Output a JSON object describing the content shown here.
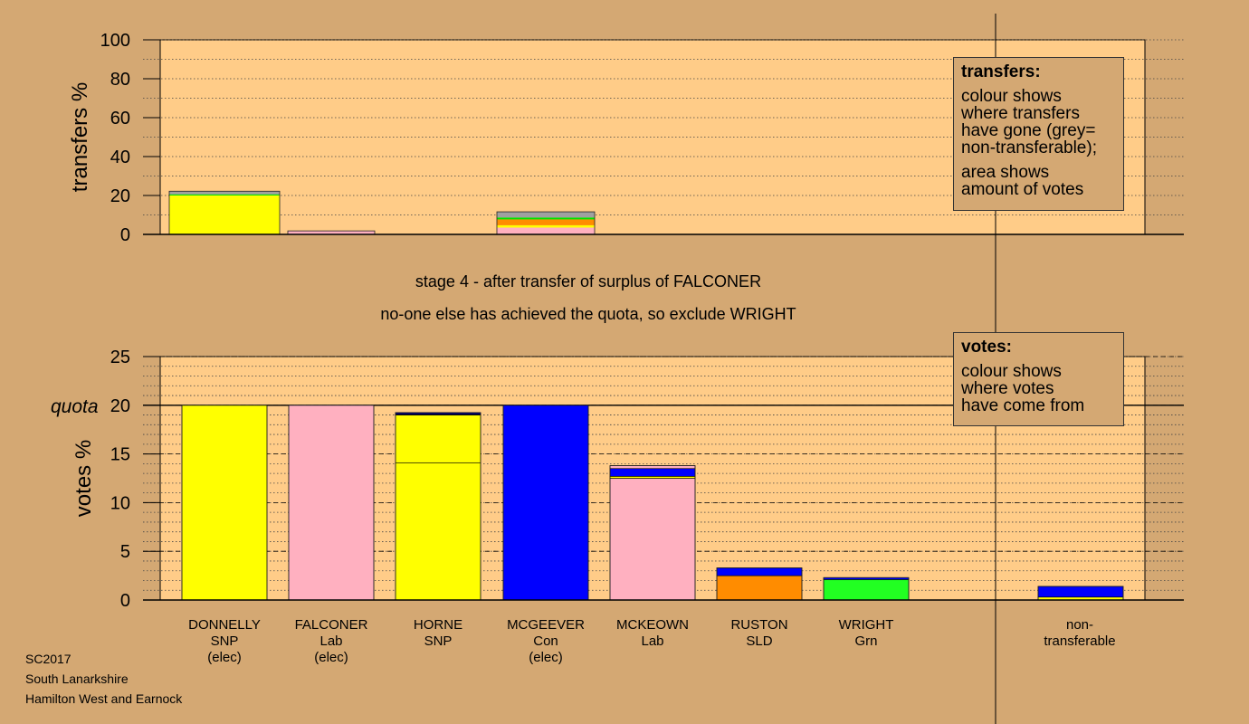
{
  "chart_data": [
    {
      "type": "bar",
      "title": "",
      "ylabel": "transfers %",
      "ylim": [
        0,
        100
      ],
      "yticks": [
        0,
        20,
        40,
        60,
        80,
        100
      ],
      "categories": [
        "DONNELLY",
        "FALCONER",
        "HORNE",
        "MCGEEVER",
        "MCKEOWN",
        "RUSTON",
        "WRIGHT"
      ],
      "stacks": [
        [
          {
            "color": "#FFFF00",
            "value": 20
          },
          {
            "color": "#00E000",
            "value": 0.6
          },
          {
            "color": "#A0A0A0",
            "value": 1.6
          }
        ],
        [
          {
            "color": "#FFB0C0",
            "value": 1.8
          }
        ],
        [],
        [
          {
            "color": "#FFB0C0",
            "value": 3.5
          },
          {
            "color": "#FFFF00",
            "value": 1.2
          },
          {
            "color": "#FF8C00",
            "value": 3
          },
          {
            "color": "#00E000",
            "value": 1
          },
          {
            "color": "#A0A0A0",
            "value": 2.9
          }
        ],
        [],
        [],
        []
      ]
    },
    {
      "type": "bar",
      "title": "",
      "ylabel": "votes %",
      "ylim": [
        0,
        25
      ],
      "yticks": [
        0,
        5,
        10,
        15,
        20,
        25
      ],
      "quota": 20,
      "quota_label": "quota",
      "categories": [
        "DONNELLY",
        "FALCONER",
        "HORNE",
        "MCGEEVER",
        "MCKEOWN",
        "RUSTON",
        "WRIGHT",
        "non-transferable"
      ],
      "stacks": [
        [
          {
            "color": "#FFFF00",
            "value": 20
          }
        ],
        [
          {
            "color": "#FFB0C0",
            "value": 20
          }
        ],
        [
          {
            "color": "#FFFF00",
            "value": 14.1
          },
          {
            "color": "#FFFF00",
            "value": 4.9
          },
          {
            "color": "#FFB0C0",
            "value": 0.05
          },
          {
            "color": "#000080",
            "value": 0.2
          }
        ],
        [
          {
            "color": "#0000FF",
            "value": 20
          }
        ],
        [
          {
            "color": "#FFB0C0",
            "value": 12.5
          },
          {
            "color": "#FFFF00",
            "value": 0.2
          },
          {
            "color": "#0000FF",
            "value": 0.8
          },
          {
            "color": "#FFB0C0",
            "value": 0.3
          }
        ],
        [
          {
            "color": "#FF8C00",
            "value": 2.5
          },
          {
            "color": "#0000FF",
            "value": 0.8
          }
        ],
        [
          {
            "color": "#22FF22",
            "value": 2.1
          },
          {
            "color": "#0000FF",
            "value": 0.2
          }
        ],
        [
          {
            "color": "#FFFF00",
            "value": 0.3
          },
          {
            "color": "#0000FF",
            "value": 1.1
          }
        ]
      ]
    }
  ],
  "candidates": [
    {
      "name": "DONNELLY",
      "party": "SNP",
      "status": "(elec)"
    },
    {
      "name": "FALCONER",
      "party": "Lab",
      "status": "(elec)"
    },
    {
      "name": "HORNE",
      "party": "SNP",
      "status": ""
    },
    {
      "name": "MCGEEVER",
      "party": "Con",
      "status": "(elec)"
    },
    {
      "name": "MCKEOWN",
      "party": "Lab",
      "status": ""
    },
    {
      "name": "RUSTON",
      "party": "SLD",
      "status": ""
    },
    {
      "name": "WRIGHT",
      "party": "Grn",
      "status": ""
    }
  ],
  "nontransferable": {
    "line1": "non-",
    "line2": "transferable"
  },
  "stage_text": "stage 4 - after transfer of surplus of FALCONER",
  "action_text": "no-one else has achieved the quota, so exclude WRIGHT",
  "legend_transfers": {
    "title": "transfers:",
    "lines_a": [
      "colour shows",
      "where transfers",
      "have gone (grey=",
      "non-transferable);"
    ],
    "lines_b": [
      "area shows",
      "amount of votes"
    ]
  },
  "legend_votes": {
    "title": "votes:",
    "lines": [
      "colour shows",
      "where votes",
      "have come from"
    ]
  },
  "meta": {
    "election": "SC2017",
    "council": "South Lanarkshire",
    "ward": "Hamilton West and Earnock"
  },
  "colors": {
    "background": "#D4A873",
    "plot_area": "#FFCC88"
  }
}
